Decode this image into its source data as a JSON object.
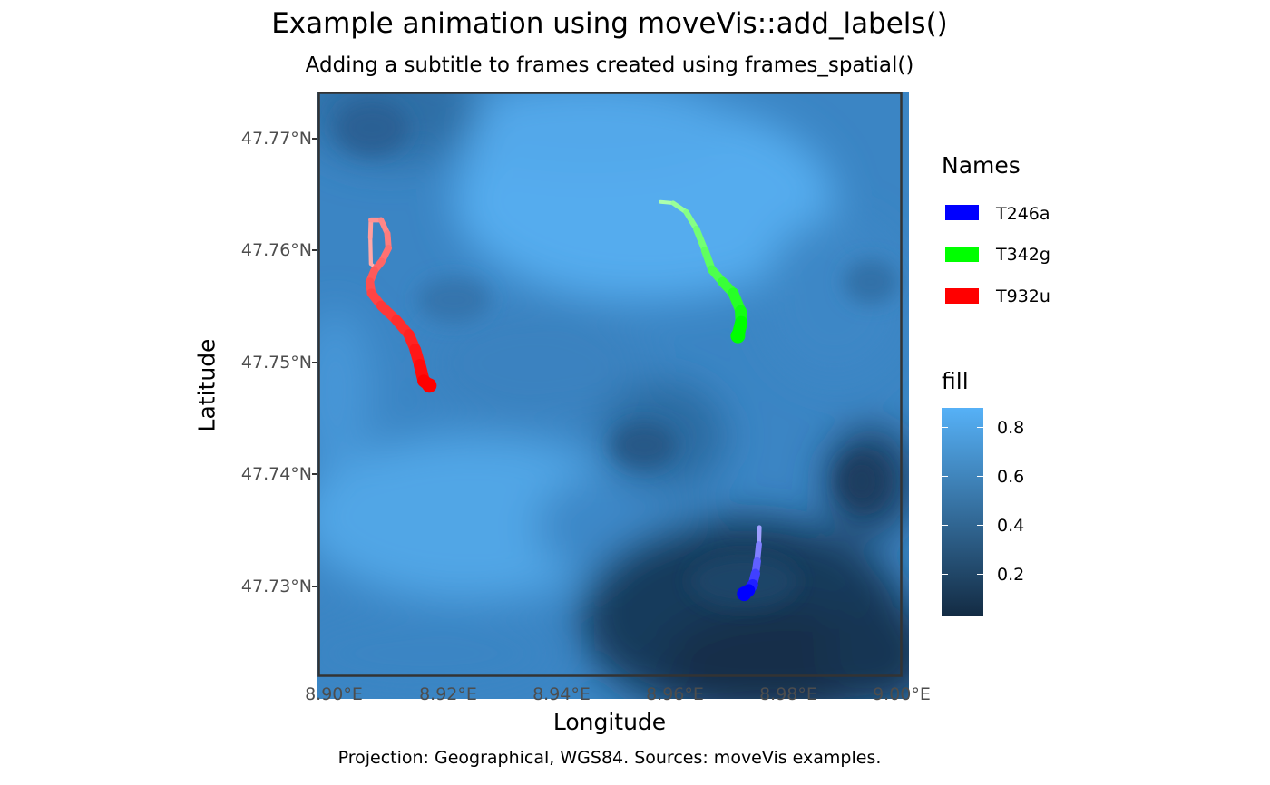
{
  "title": "Example animation using moveVis::add_labels()",
  "subtitle": "Adding a subtitle to frames created using frames_spatial()",
  "axes": {
    "x_label": "Longitude",
    "y_label": "Latitude",
    "x_ticks": [
      "8.90°E",
      "8.92°E",
      "8.94°E",
      "8.96°E",
      "8.98°E",
      "9.00°E"
    ],
    "y_ticks": [
      "47.77°N",
      "47.76°N",
      "47.75°N",
      "47.74°N",
      "47.73°N"
    ]
  },
  "caption": "Projection: Geographical, WGS84. Sources: moveVis examples.",
  "legend_names": {
    "title": "Names",
    "items": [
      {
        "label": "T246a",
        "color": "#0000ff"
      },
      {
        "label": "T342g",
        "color": "#00ff00"
      },
      {
        "label": "T932u",
        "color": "#ff0000"
      }
    ]
  },
  "legend_fill": {
    "title": "fill",
    "ticks": [
      "0.8",
      "0.6",
      "0.4",
      "0.2"
    ],
    "gradient": [
      "#56b1f7",
      "#132b43"
    ]
  },
  "map": {
    "extent": {
      "lon": [
        8.897,
        9.0
      ],
      "lat": [
        47.7215,
        47.7735
      ]
    },
    "tracks": [
      {
        "name": "T246a",
        "color": "#0000ff",
        "points": [
          [
            8.9748,
            47.7348
          ],
          [
            8.9747,
            47.7333
          ],
          [
            8.9744,
            47.7318
          ],
          [
            8.9741,
            47.7307
          ],
          [
            8.9736,
            47.7297
          ],
          [
            8.9729,
            47.7292
          ],
          [
            8.9721,
            47.7289
          ]
        ]
      },
      {
        "name": "T342g",
        "color": "#00ff00",
        "points": [
          [
            8.9574,
            47.7637
          ],
          [
            8.9596,
            47.7636
          ],
          [
            8.9619,
            47.7628
          ],
          [
            8.9637,
            47.7613
          ],
          [
            8.9652,
            47.7594
          ],
          [
            8.9664,
            47.7577
          ],
          [
            8.9683,
            47.7566
          ],
          [
            8.9702,
            47.7556
          ],
          [
            8.9715,
            47.754
          ],
          [
            8.9716,
            47.753
          ],
          [
            8.971,
            47.7518
          ]
        ]
      },
      {
        "name": "T932u",
        "color": "#ff0000",
        "points": [
          [
            8.9074,
            47.7578
          ],
          [
            8.9064,
            47.7582
          ],
          [
            8.9063,
            47.7605
          ],
          [
            8.9064,
            47.7621
          ],
          [
            8.9082,
            47.7621
          ],
          [
            8.9093,
            47.7609
          ],
          [
            8.9095,
            47.7596
          ],
          [
            8.9083,
            47.7584
          ],
          [
            8.907,
            47.7576
          ],
          [
            8.9062,
            47.7566
          ],
          [
            8.9065,
            47.7556
          ],
          [
            8.9082,
            47.7545
          ],
          [
            8.9109,
            47.7532
          ],
          [
            8.9131,
            47.7519
          ],
          [
            8.9142,
            47.7506
          ],
          [
            8.915,
            47.7492
          ],
          [
            8.9157,
            47.7478
          ],
          [
            8.9167,
            47.7474
          ]
        ]
      }
    ]
  }
}
